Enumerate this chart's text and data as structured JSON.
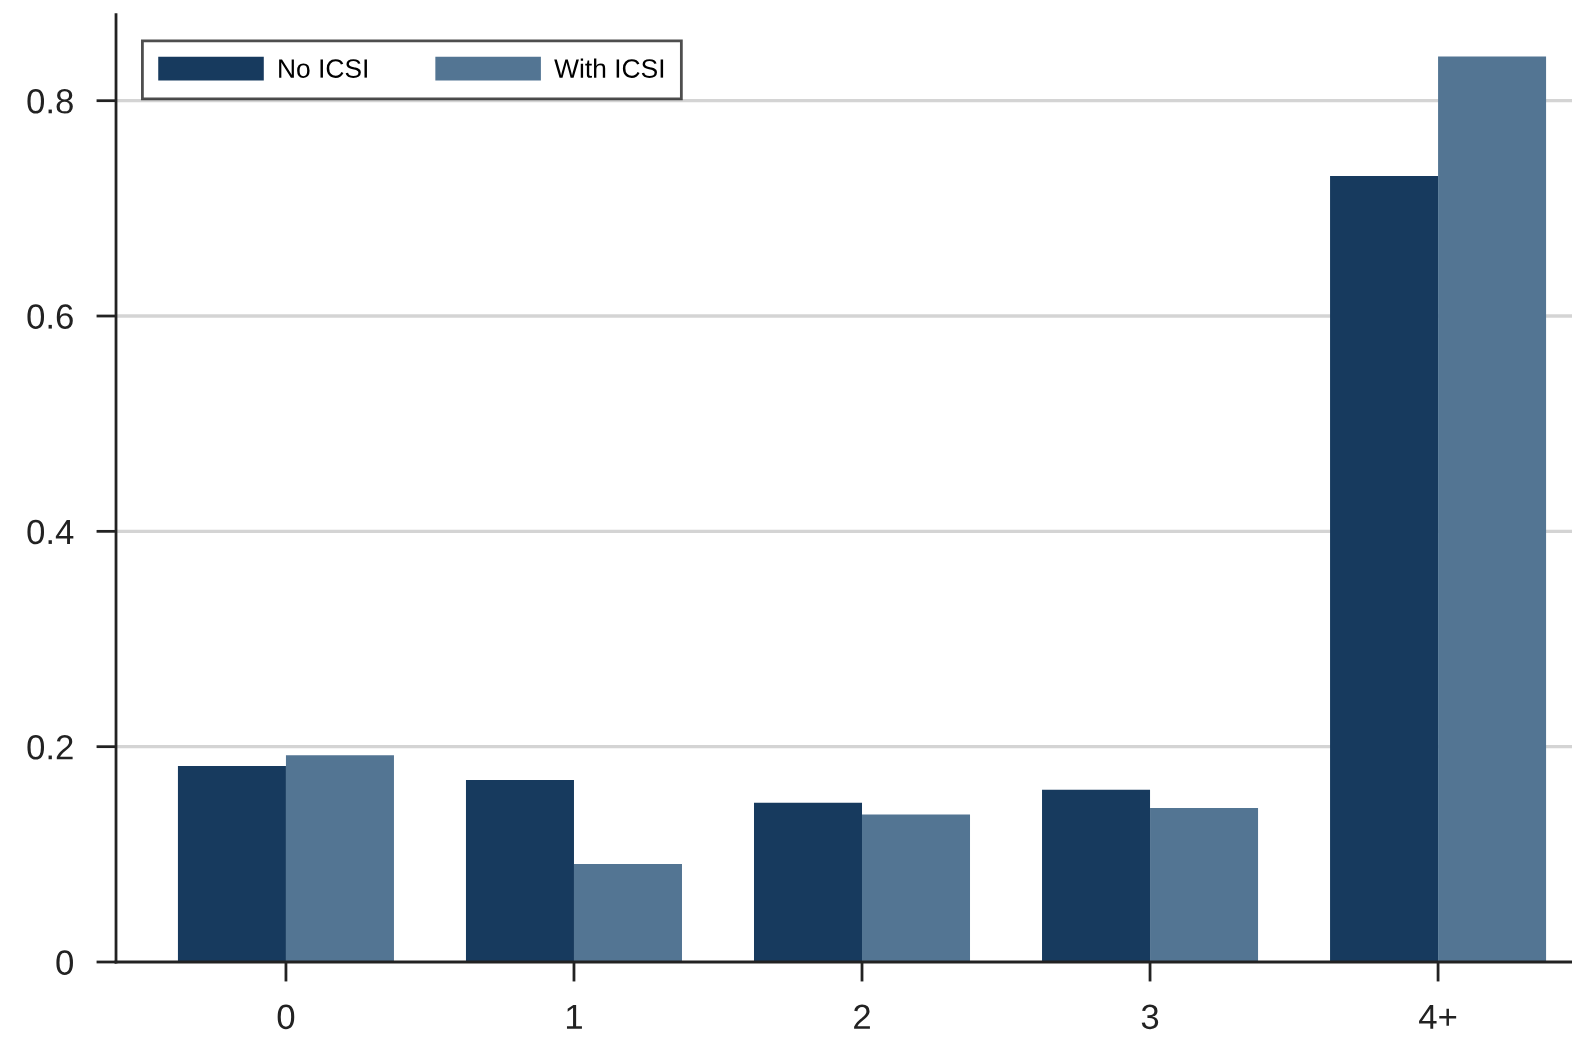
{
  "chart_data": {
    "type": "bar",
    "categories": [
      "0",
      "1",
      "2",
      "3",
      "4+"
    ],
    "series": [
      {
        "name": "No ICSI",
        "color": "#173a5e",
        "values": [
          0.182,
          0.169,
          0.148,
          0.16,
          0.73
        ]
      },
      {
        "name": "With ICSI",
        "color": "#537593",
        "values": [
          0.192,
          0.091,
          0.137,
          0.143,
          0.841
        ]
      }
    ],
    "ylim": [
      0,
      0.88
    ],
    "yticks": [
      0,
      0.2,
      0.4,
      0.6,
      0.8
    ],
    "grid": "y",
    "legend": "top left"
  }
}
